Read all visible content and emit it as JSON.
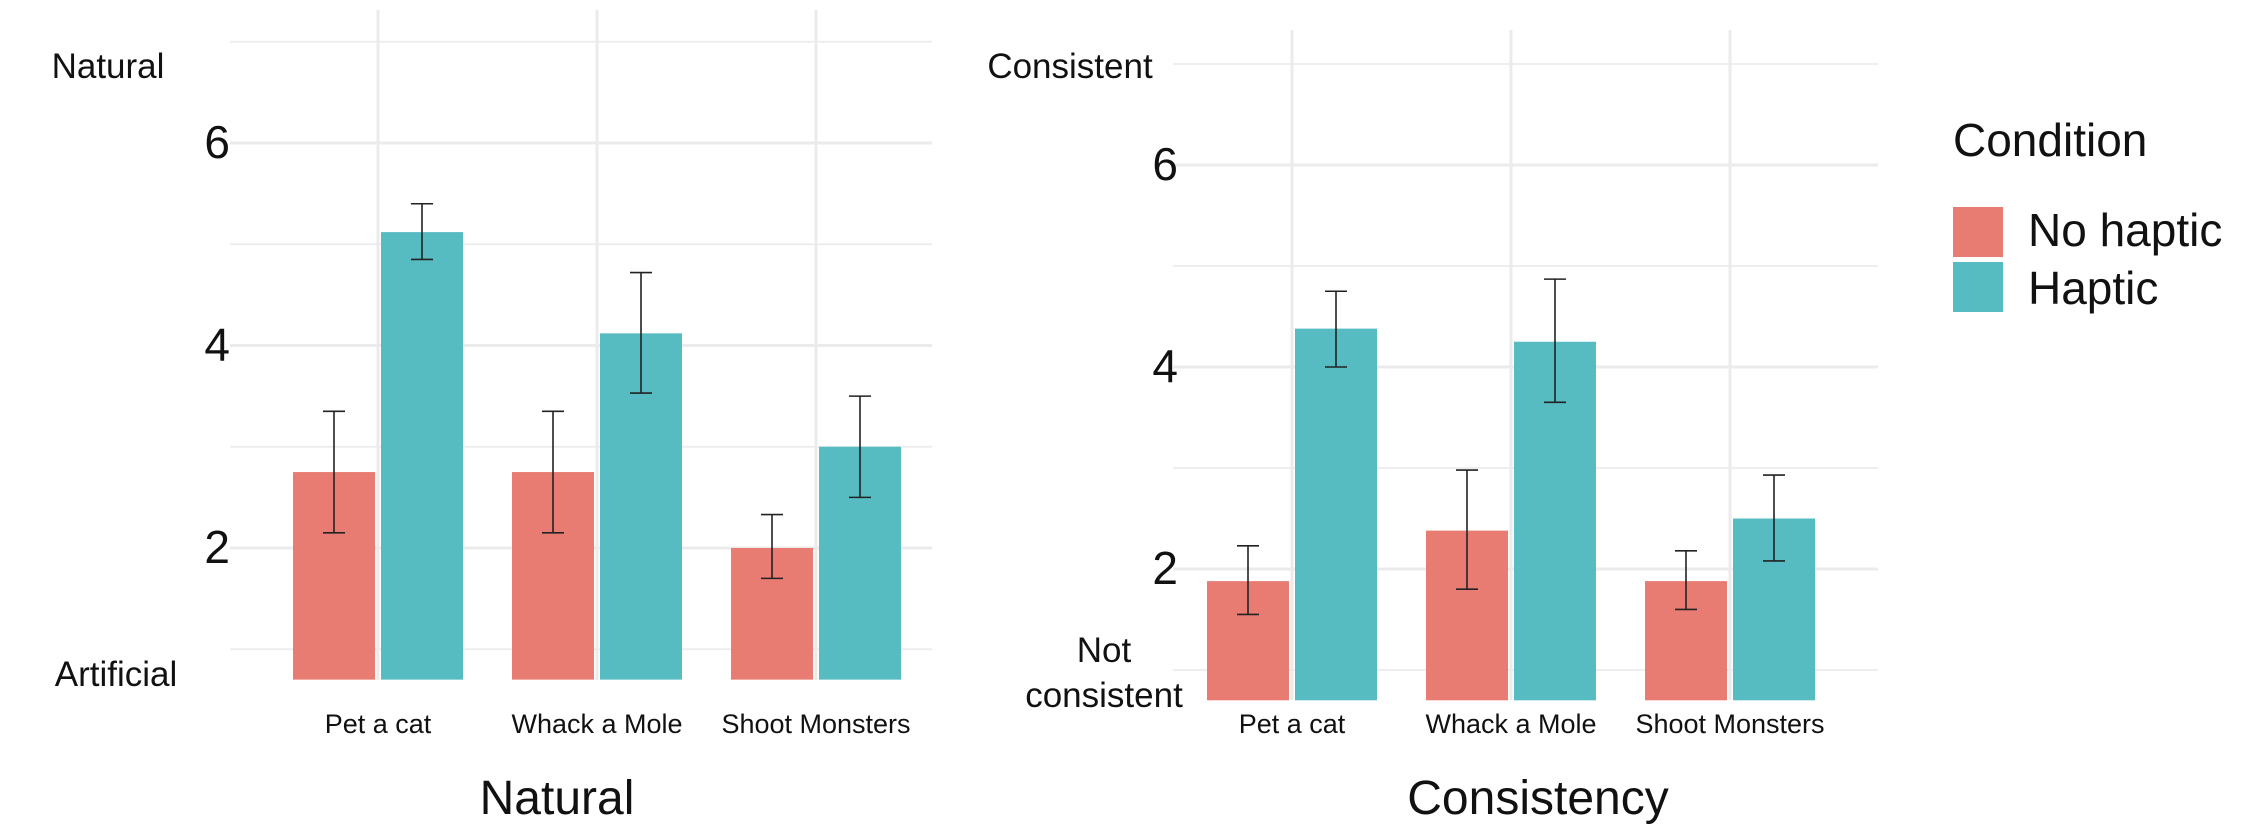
{
  "chart_data": [
    {
      "type": "bar",
      "categories": [
        "Pet a cat",
        "Whack a Mole",
        "Shoot Monsters"
      ],
      "series": [
        {
          "name": "No haptic",
          "values": [
            2.75,
            2.75,
            2.0
          ],
          "err_low": [
            2.15,
            2.15,
            1.7
          ],
          "err_high": [
            3.35,
            3.35,
            2.33
          ]
        },
        {
          "name": "Haptic",
          "values": [
            5.12,
            4.12,
            3.0
          ],
          "err_low": [
            4.85,
            3.53,
            2.5
          ],
          "err_high": [
            5.4,
            4.72,
            3.5
          ]
        }
      ],
      "title": "",
      "xlabel": "Natural",
      "ylabel": "",
      "ylim": [
        0.7,
        7.0
      ],
      "yticks": [
        2,
        4,
        6
      ],
      "y_anchor_labels": {
        "top": "Natural",
        "bottom": "Artificial"
      },
      "grid": true
    },
    {
      "type": "bar",
      "categories": [
        "Pet a cat",
        "Whack a Mole",
        "Shoot Monsters"
      ],
      "series": [
        {
          "name": "No haptic",
          "values": [
            1.88,
            2.38,
            1.88
          ],
          "err_low": [
            1.55,
            1.8,
            1.6
          ],
          "err_high": [
            2.23,
            2.98,
            2.18
          ]
        },
        {
          "name": "Haptic",
          "values": [
            4.38,
            4.25,
            2.5
          ],
          "err_low": [
            4.0,
            3.65,
            2.08
          ],
          "err_high": [
            4.75,
            4.87,
            2.93
          ]
        }
      ],
      "title": "",
      "xlabel": "Consistency",
      "ylabel": "",
      "ylim": [
        0.7,
        7.0
      ],
      "yticks": [
        2,
        4,
        6
      ],
      "y_anchor_labels": {
        "top": "Consistent",
        "bottom": "Not consistent"
      },
      "grid": true
    }
  ],
  "legend": {
    "title": "Condition",
    "placement": "right",
    "items": [
      {
        "label": "No haptic",
        "color": "#E87C72"
      },
      {
        "label": "Haptic",
        "color": "#57BCC2"
      }
    ]
  },
  "colors": {
    "no_haptic": "#E87C72",
    "haptic": "#57BCC2",
    "grid": "#EBEBEB"
  }
}
